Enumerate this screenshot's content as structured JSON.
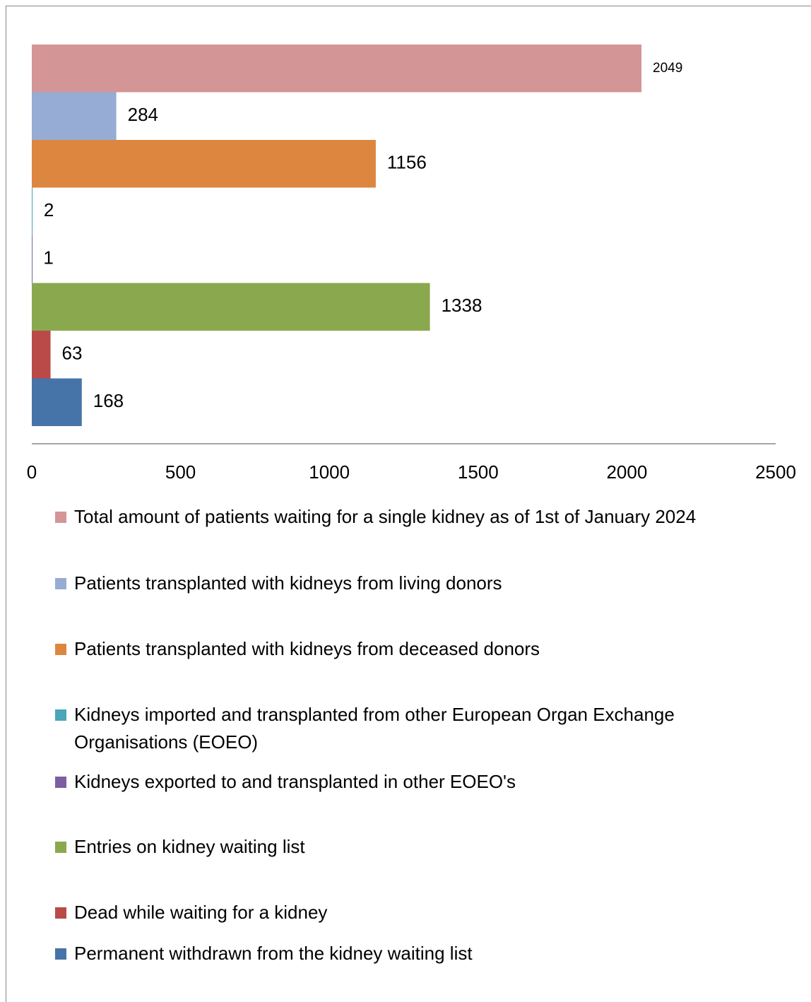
{
  "chart_data": {
    "type": "bar",
    "orientation": "horizontal",
    "xlim": [
      0,
      2500
    ],
    "xticks": [
      0,
      500,
      1000,
      1500,
      2000,
      2500
    ],
    "grid": false,
    "legend": "bottom",
    "series": [
      {
        "name": "Total amount of patients waiting for a single kidney as of 1st of January 2024",
        "color": "#d49596",
        "values": [
          2049
        ]
      },
      {
        "name": "Patients transplanted with kidneys from living donors",
        "color": "#97acd4",
        "values": [
          284
        ]
      },
      {
        "name": "Patients transplanted with kidneys from deceased donors",
        "color": "#dd8640",
        "values": [
          1156
        ]
      },
      {
        "name": "Kidneys imported and transplanted from other European Organ Exchange Organisations (EOEO)",
        "color": "#4aa6b8",
        "values": [
          2
        ]
      },
      {
        "name": "Kidneys exported to and transplanted in other EOEO's",
        "color": "#7d5ea0",
        "values": [
          1
        ]
      },
      {
        "name": "Entries on kidney waiting list",
        "color": "#8aa84e",
        "values": [
          1338
        ]
      },
      {
        "name": "Dead while waiting for a kidney",
        "color": "#b94a48",
        "values": [
          63
        ]
      },
      {
        "name": "Permanent withdrawn from the kidney waiting list",
        "color": "#4674a8",
        "values": [
          168
        ]
      }
    ]
  }
}
